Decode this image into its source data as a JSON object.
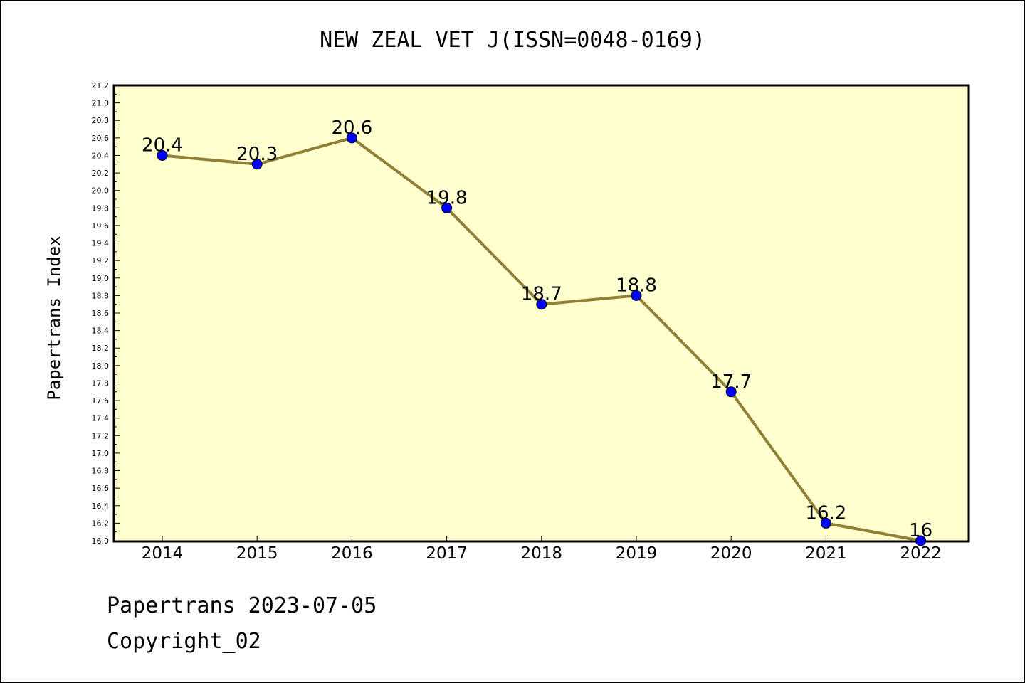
{
  "chart_data": {
    "type": "line",
    "title": "NEW ZEAL VET J(ISSN=0048-0169)",
    "xlabel": "",
    "ylabel": "Papertrans Index",
    "categories": [
      "2014",
      "2015",
      "2016",
      "2017",
      "2018",
      "2019",
      "2020",
      "2021",
      "2022"
    ],
    "series": [
      {
        "values": [
          20.4,
          20.3,
          20.6,
          19.8,
          18.7,
          18.8,
          17.7,
          16.2,
          16.0
        ],
        "labels": [
          "20.4",
          "20.3",
          "20.6",
          "19.8",
          "18.7",
          "18.8",
          "17.7",
          "16.2",
          "16"
        ]
      }
    ],
    "ylim": [
      16.0,
      21.2
    ],
    "ytick_step": 0.2,
    "grid": false,
    "colors": {
      "plot_background": "#ffffd0",
      "line": "#8f8035",
      "marker": "#0000ff"
    }
  },
  "footer": {
    "date_line": "Papertrans 2023-07-05",
    "copyright_line": "Copyright_02"
  }
}
